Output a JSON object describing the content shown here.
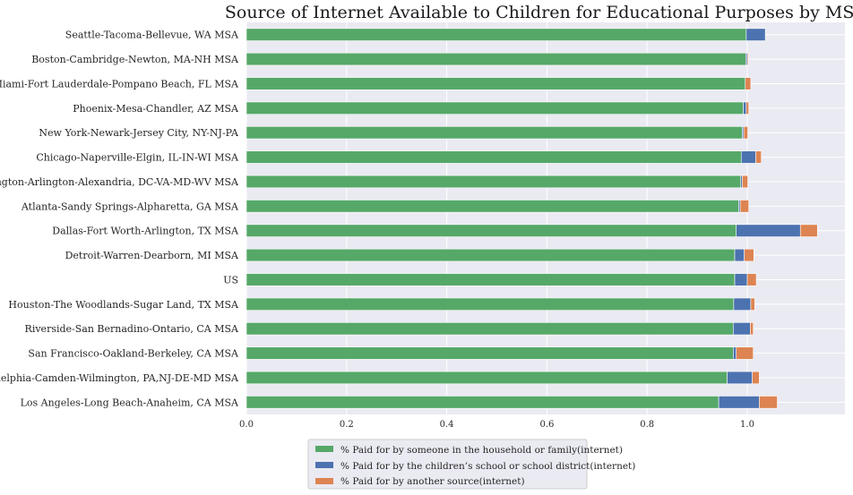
{
  "chart_data": {
    "type": "bar",
    "orientation": "horizontal",
    "stacked": true,
    "title": "Source of Internet Available to Children for Educational Purposes by MSA",
    "xlabel": "",
    "ylabel": "",
    "xlim": [
      0.0,
      1.195
    ],
    "xticks": [
      "0.0",
      "0.2",
      "0.4",
      "0.6",
      "0.8",
      "1.0"
    ],
    "grid": true,
    "legend_position": "bottom-center",
    "categories": [
      "Seattle-Tacoma-Bellevue, WA MSA",
      "Boston-Cambridge-Newton, MA-NH MSA",
      "Miami-Fort Lauderdale-Pompano Beach, FL MSA",
      "Phoenix-Mesa-Chandler, AZ MSA",
      "New York-Newark-Jersey City, NY-NJ-PA",
      "Chicago-Naperville-Elgin, IL-IN-WI MSA",
      "Washington-Arlington-Alexandria, DC-VA-MD-WV MSA",
      "Atlanta-Sandy Springs-Alpharetta, GA MSA",
      "Dallas-Fort Worth-Arlington, TX MSA",
      "Detroit-Warren-Dearborn, MI MSA",
      "US",
      "Houston-The Woodlands-Sugar Land, TX MSA",
      "Riverside-San Bernadino-Ontario, CA MSA",
      "San Francisco-Oakland-Berkeley, CA MSA",
      "Philadelphia-Camden-Wilmington, PA,NJ-DE-MD MSA",
      "Los Angeles-Long Beach-Anaheim, CA MSA"
    ],
    "series": [
      {
        "name": "% Paid for by someone in the household or family(internet)",
        "color": "#55a868",
        "values": [
          0.998,
          0.997,
          0.996,
          0.992,
          0.99,
          0.988,
          0.987,
          0.983,
          0.978,
          0.975,
          0.975,
          0.973,
          0.972,
          0.972,
          0.96,
          0.943
        ]
      },
      {
        "name": "% Paid for by the children’s school or school district(internet)",
        "color": "#4c72b0",
        "values": [
          0.038,
          0.003,
          0.0,
          0.006,
          0.003,
          0.029,
          0.003,
          0.003,
          0.128,
          0.019,
          0.025,
          0.034,
          0.034,
          0.006,
          0.05,
          0.081
        ]
      },
      {
        "name": "% Paid for by another source(internet)",
        "color": "#dd8452",
        "values": [
          0.0,
          0.002,
          0.011,
          0.005,
          0.008,
          0.011,
          0.011,
          0.017,
          0.034,
          0.019,
          0.018,
          0.008,
          0.006,
          0.034,
          0.014,
          0.036
        ]
      }
    ]
  }
}
